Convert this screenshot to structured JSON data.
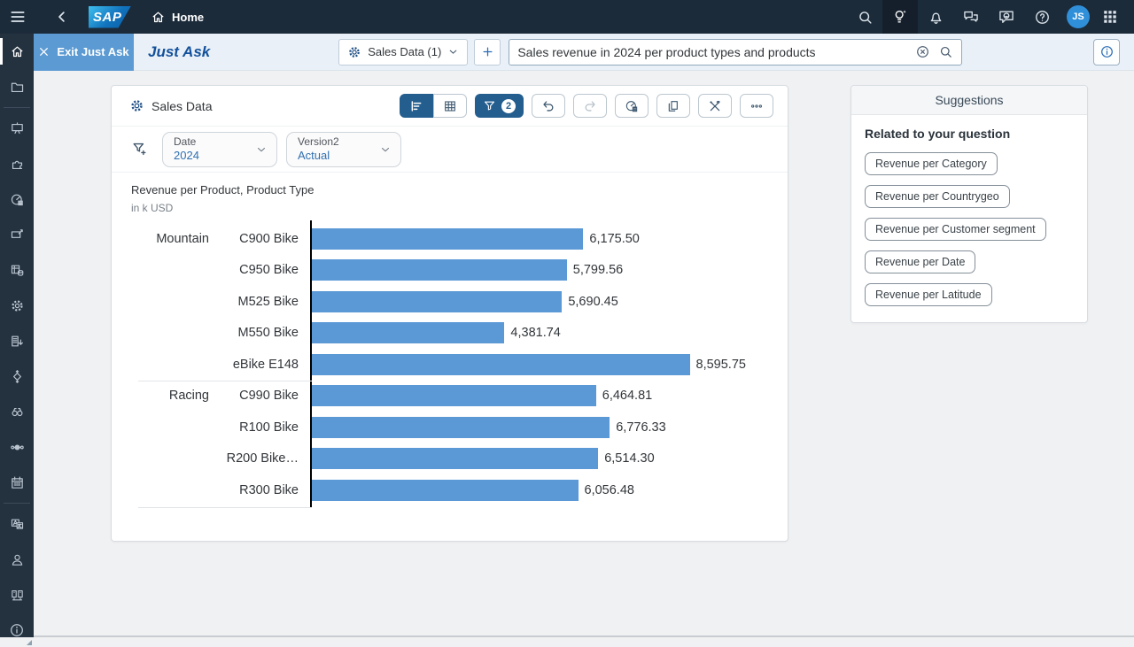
{
  "shell": {
    "brand": "SAP",
    "page_title": "Home",
    "avatar_initials": "JS"
  },
  "justask": {
    "exit_label": "Exit Just Ask",
    "title": "Just Ask",
    "model_selector_label": "Sales Data (1)",
    "query_value": "Sales revenue in 2024 per product types and products"
  },
  "widget": {
    "source_label": "Sales Data",
    "filter_count": "2",
    "filters": [
      {
        "label": "Date",
        "value": "2024"
      },
      {
        "label": "Version2",
        "value": "Actual"
      }
    ]
  },
  "chart_data": {
    "type": "bar",
    "orientation": "horizontal",
    "title": "Revenue per Product, Product Type",
    "subtitle": "in k USD",
    "unit": "k USD",
    "value_axis_max": 10500,
    "grid": false,
    "legend": "none",
    "series": [
      {
        "name": "Revenue",
        "color": "#5b99d6",
        "points": [
          {
            "group": "Mountain",
            "category": "C900 Bike",
            "value": 6175.5,
            "label": "6,175.50"
          },
          {
            "group": "Mountain",
            "category": "C950 Bike",
            "value": 5799.56,
            "label": "5,799.56"
          },
          {
            "group": "Mountain",
            "category": "M525 Bike",
            "value": 5690.45,
            "label": "5,690.45"
          },
          {
            "group": "Mountain",
            "category": "M550 Bike",
            "value": 4381.74,
            "label": "4,381.74"
          },
          {
            "group": "Mountain",
            "category": "eBike E148",
            "value": 8595.75,
            "label": "8,595.75"
          },
          {
            "group": "Racing",
            "category": "C990 Bike",
            "value": 6464.81,
            "label": "6,464.81"
          },
          {
            "group": "Racing",
            "category": "R100 Bike",
            "value": 6776.33,
            "label": "6,776.33"
          },
          {
            "group": "Racing",
            "category": "R200 Bike…",
            "value": 6514.3,
            "label": "6,514.30"
          },
          {
            "group": "Racing",
            "category": "R300 Bike",
            "value": 6056.48,
            "label": "6,056.48"
          }
        ]
      }
    ]
  },
  "suggestions": {
    "header": "Suggestions",
    "section_title": "Related to your question",
    "items": [
      "Revenue per Category",
      "Revenue per Countrygeo",
      "Revenue per Customer segment",
      "Revenue per Date",
      "Revenue per Latitude"
    ]
  },
  "colors": {
    "bar": "#5b99d6",
    "shell_dark": "#1c2b3a",
    "sidebar_dark": "#24323f",
    "subbar": "#e9f0f7",
    "exit_button": "#5b9ad2",
    "toolbar_selected": "#235e8f",
    "accent_blue": "#2a6db5",
    "title_blue": "#14519c"
  }
}
